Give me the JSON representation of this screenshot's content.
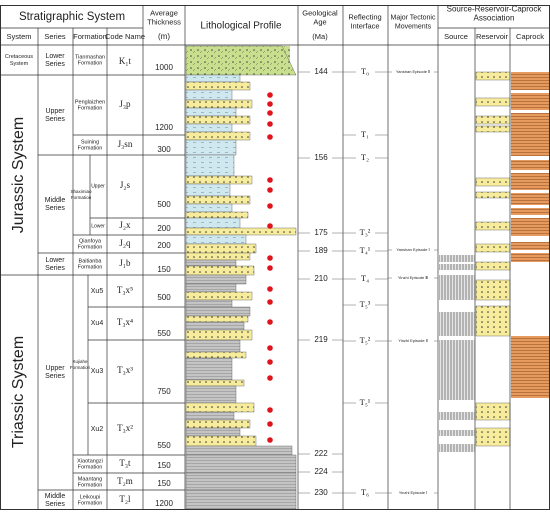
{
  "header": {
    "stratigraphic_system": "Stratigraphic System",
    "system": "System",
    "series": "Series",
    "formation": "Formation",
    "code_name": "Code Name",
    "thickness": [
      "Average",
      "Thickness"
    ],
    "thickness_unit": "(m)",
    "profile": "Lithological Profile",
    "age": [
      "Geological",
      "Age"
    ],
    "age_unit": "(Ma)",
    "interface": [
      "Reflecting",
      "Interface"
    ],
    "tectonic": [
      "Major Tectonic",
      "Movements"
    ],
    "association": [
      "Source-Reservoir-Caprock",
      "Association"
    ],
    "source": "Source",
    "reservoir": "Reservoir",
    "caprock": "Caprock"
  },
  "systems": [
    [
      "Cretaceous",
      "System"
    ],
    [
      "Jurassic System"
    ],
    [
      "Triassic System"
    ]
  ],
  "series": [
    [
      "Lower",
      "Series"
    ],
    [
      "Upper",
      "Series"
    ],
    [
      "Middle",
      "Series"
    ],
    [
      "Lower",
      "Series"
    ],
    [
      "Upper",
      "Series"
    ],
    [
      "Middle",
      "Series"
    ]
  ],
  "formations": [
    [
      "Tianmashan",
      "Formation"
    ],
    [
      "Penglaizhen",
      "Formation"
    ],
    [
      "Suining",
      "Formation"
    ],
    [
      "Shaximiao",
      "Formation"
    ],
    [
      "Qianfoya",
      "Formation"
    ],
    [
      "Baitianba",
      "Formation"
    ],
    [
      "Xujiahe",
      "Formation"
    ],
    [
      "Xiaotangzi",
      "Formation"
    ],
    [
      "Maantang",
      "Formation"
    ],
    [
      "Leikoupi",
      "Formation"
    ]
  ],
  "members": [
    "Upper",
    "Lower",
    "Xu5",
    "Xu4",
    "Xu3",
    "Xu2"
  ],
  "codes": [
    "K₁t",
    "J₃p",
    "J₃sn",
    "J₂s",
    "J₂x",
    "J₂q",
    "J₁b",
    "T₃x⁵",
    "T₃x⁴",
    "T₃x³",
    "T₃x²",
    "T₃t",
    "T₂m",
    "T₂l"
  ],
  "thickness": [
    "1000",
    "1200",
    "300",
    "500",
    "200",
    "200",
    "150",
    "500",
    "550",
    "750",
    "550",
    "150",
    "150",
    "1200"
  ],
  "ages": [
    "144",
    "156",
    "175",
    "189",
    "210",
    "219",
    "222",
    "224",
    "230"
  ],
  "interfaces": [
    "T₀",
    "T₁",
    "T₂",
    "T₃²",
    "T₄¹",
    "T₄",
    "T₅³",
    "T₅²",
    "T₅¹",
    "T₆"
  ],
  "tectonic_movements": [
    "Yanshan Episode Ⅱ",
    "Yanshan Episode Ⅰ",
    "Yinzhi Episode Ⅲ",
    "Yinzhi Episode Ⅱ",
    "Yinzhi Episode Ⅰ"
  ]
}
